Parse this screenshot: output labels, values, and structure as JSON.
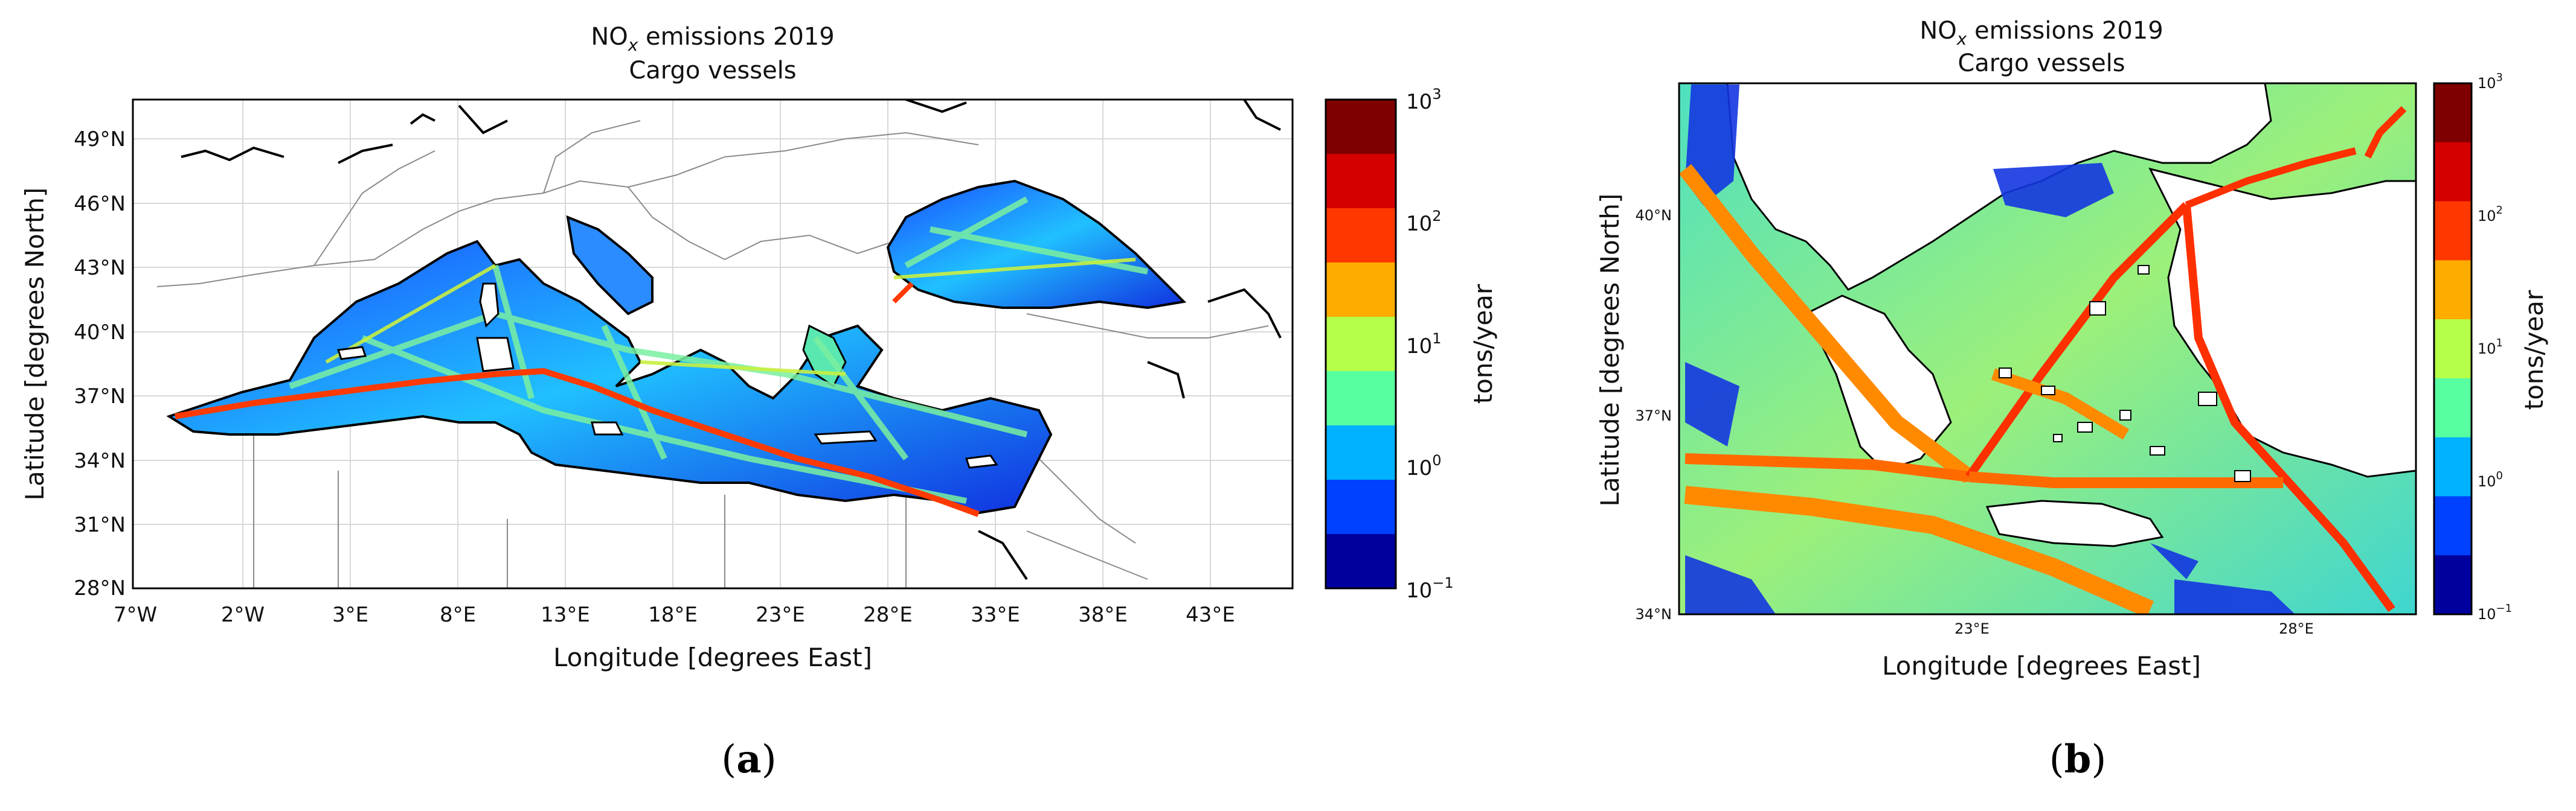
{
  "panel_a": {
    "title_prefix": "NO",
    "title_subscript": "x",
    "title_suffix": " emissions 2019",
    "subtitle": "Cargo vessels",
    "xlabel": "Longitude [degrees East]",
    "ylabel": "Latitude [degrees North]",
    "x_ticks": [
      "7°W",
      "2°W",
      "3°E",
      "8°E",
      "13°E",
      "18°E",
      "23°E",
      "28°E",
      "33°E",
      "38°E",
      "43°E"
    ],
    "y_ticks": [
      "49°N",
      "46°N",
      "43°N",
      "40°N",
      "37°N",
      "34°N",
      "31°N",
      "28°N"
    ],
    "extent": {
      "lon": [
        -7,
        47
      ],
      "lat": [
        28,
        51
      ]
    },
    "colorbar": {
      "label": "tons/year",
      "tick_bases": [
        "10",
        "10",
        "10",
        "10",
        "10"
      ],
      "tick_exps": [
        "3",
        "2",
        "1",
        "0",
        "−1"
      ],
      "levels": [
        "#7f0000",
        "#d40000",
        "#ff3800",
        "#ffac00",
        "#b6ff48",
        "#57ffa0",
        "#00b2ff",
        "#0040ff",
        "#00009f"
      ]
    },
    "label": "(a)",
    "label_letter": "a"
  },
  "panel_b": {
    "title_prefix": "NO",
    "title_subscript": "x",
    "title_suffix": " emissions 2019",
    "subtitle": "Cargo vessels",
    "xlabel": "Longitude [degrees East]",
    "ylabel": "Latitude [degrees North]",
    "x_ticks": [
      "23°E",
      "28°E"
    ],
    "y_ticks": [
      "40°N",
      "37°N",
      "34°N"
    ],
    "extent": {
      "lon": [
        19,
        30
      ],
      "lat": [
        34,
        41.5
      ]
    },
    "colorbar": {
      "label": "tons/year",
      "tick_bases": [
        "10",
        "10",
        "10",
        "10",
        "10"
      ],
      "tick_exps": [
        "3",
        "2",
        "1",
        "0",
        "−1"
      ],
      "levels": [
        "#7f0000",
        "#d40000",
        "#ff3800",
        "#ffac00",
        "#b6ff48",
        "#57ffa0",
        "#00b2ff",
        "#0040ff",
        "#00009f"
      ]
    },
    "label": "(b)",
    "label_letter": "b"
  },
  "colors": {
    "ocean_low": "#1020d0",
    "route_high": "#ff3800",
    "coast": "#000000",
    "border": "#888888"
  }
}
